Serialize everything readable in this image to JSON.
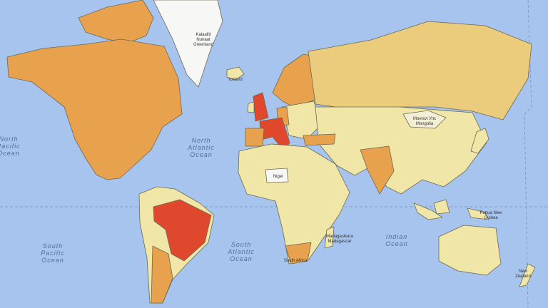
{
  "map": {
    "colors": {
      "ocean": "#a6c4ee",
      "low": "#efe6a8",
      "mid_low": "#ebcb7c",
      "mid": "#e8a14c",
      "high": "#e0482e",
      "no_data": "#f7f7f5"
    },
    "oceans": {
      "north_pacific": [
        "North",
        "Pacific",
        "Ocean"
      ],
      "north_atlantic": [
        "North",
        "Atlantic",
        "Ocean"
      ],
      "south_pacific": [
        "South",
        "Pacific",
        "Ocean"
      ],
      "south_atlantic": [
        "South",
        "Atlantic",
        "Ocean"
      ],
      "indian": [
        "Indian",
        "Ocean"
      ]
    },
    "countries": {
      "greenland": [
        "Kalaallit",
        "Nunaat",
        "Greenland"
      ],
      "iceland": "Iceland",
      "mongolia": [
        "Монгол Улс",
        "Mongolia"
      ],
      "niger": "Niger",
      "madagascar": [
        "Madagasikara",
        "Madagascar"
      ],
      "south_africa": "South Africa",
      "papua_new_guinea": [
        "Papua New",
        "Guinea"
      ],
      "new_zealand": [
        "New",
        "Zealand"
      ]
    }
  }
}
